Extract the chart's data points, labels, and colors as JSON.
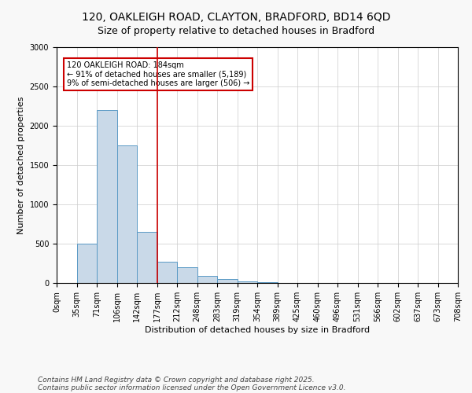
{
  "title_line1": "120, OAKLEIGH ROAD, CLAYTON, BRADFORD, BD14 6QD",
  "title_line2": "Size of property relative to detached houses in Bradford",
  "xlabel": "Distribution of detached houses by size in Bradford",
  "ylabel": "Number of detached properties",
  "bar_values": [
    0,
    500,
    2200,
    1750,
    650,
    270,
    200,
    90,
    50,
    20,
    10,
    5,
    3,
    2,
    1,
    1,
    0,
    0,
    0,
    0
  ],
  "bar_labels": [
    "0sqm",
    "35sqm",
    "71sqm",
    "106sqm",
    "142sqm",
    "177sqm",
    "212sqm",
    "248sqm",
    "283sqm",
    "319sqm",
    "354sqm",
    "389sqm",
    "425sqm",
    "460sqm",
    "496sqm",
    "531sqm",
    "566sqm",
    "602sqm",
    "637sqm",
    "673sqm",
    "708sqm"
  ],
  "bar_color": "#c9d9e8",
  "bar_edge_color": "#5a9ac5",
  "vline_x": 5,
  "vline_color": "#cc0000",
  "annotation_text": "120 OAKLEIGH ROAD: 184sqm\n← 91% of detached houses are smaller (5,189)\n9% of semi-detached houses are larger (506) →",
  "annotation_box_color": "#cc0000",
  "annotation_text_color": "black",
  "annotation_bg": "white",
  "ylim": [
    0,
    3000
  ],
  "yticks": [
    0,
    500,
    1000,
    1500,
    2000,
    2500,
    3000
  ],
  "footer_line1": "Contains HM Land Registry data © Crown copyright and database right 2025.",
  "footer_line2": "Contains public sector information licensed under the Open Government Licence v3.0.",
  "bg_color": "#f8f8f8",
  "plot_bg_color": "white",
  "grid_color": "#cccccc",
  "title_fontsize": 10,
  "subtitle_fontsize": 9,
  "label_fontsize": 8,
  "tick_fontsize": 7,
  "footer_fontsize": 6.5
}
